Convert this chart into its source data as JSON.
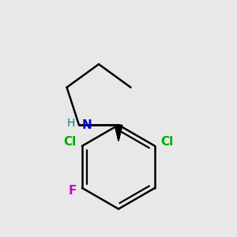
{
  "background_color": "#e8e8e8",
  "bond_color": "#000000",
  "bond_width": 1.8,
  "N_color": "#0000cc",
  "H_color": "#008080",
  "Cl_color": "#00aa00",
  "F_color": "#cc00cc",
  "Cl_label": "Cl",
  "F_label": "F",
  "N_label": "N",
  "H_label": "H",
  "font_size": 11,
  "fig_width": 3.0,
  "fig_height": 3.0,
  "dpi": 100,
  "xlim": [
    -1.6,
    1.6
  ],
  "ylim": [
    -2.0,
    1.6
  ]
}
